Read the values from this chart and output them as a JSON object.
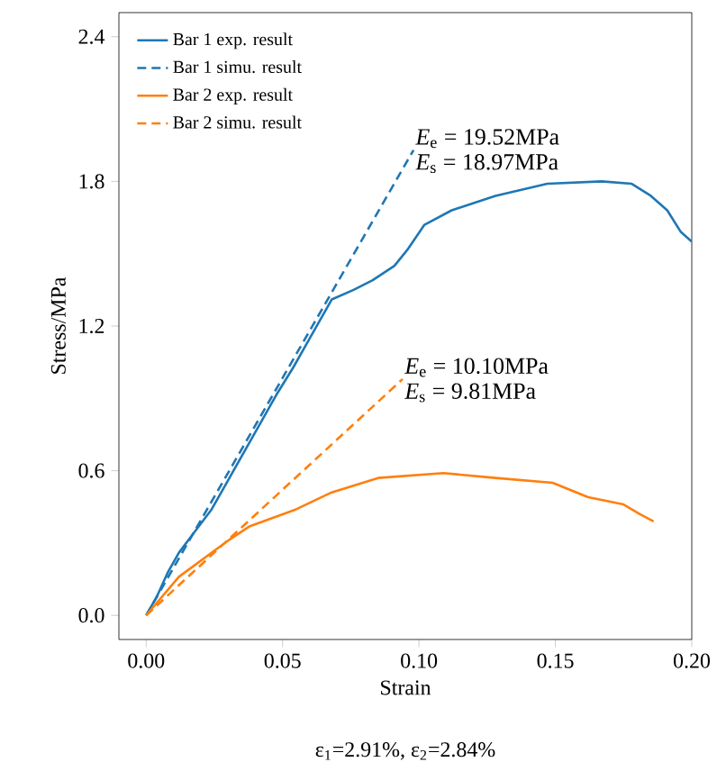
{
  "chart_data": {
    "type": "line",
    "xlabel": "Strain",
    "ylabel": "Stress/MPa",
    "xlim": [
      -0.01,
      0.2
    ],
    "ylim": [
      -0.1,
      2.5
    ],
    "xticks": [
      {
        "value": 0,
        "label": "0.00"
      },
      {
        "value": 0.05,
        "label": "0.05"
      },
      {
        "value": 0.1,
        "label": "0.10"
      },
      {
        "value": 0.15,
        "label": "0.15"
      },
      {
        "value": 0.2,
        "label": "0.20"
      }
    ],
    "yticks": [
      {
        "value": 0,
        "label": "0.0"
      },
      {
        "value": 0.6,
        "label": "0.6"
      },
      {
        "value": 1.2,
        "label": "1.2"
      },
      {
        "value": 1.8,
        "label": "1.8"
      },
      {
        "value": 2.4,
        "label": "2.4"
      }
    ],
    "legend": "top left",
    "grid": false,
    "series": [
      {
        "name": "Bar 1 exp. result",
        "color": "#1f77b4",
        "line_style": "solid",
        "x": [
          0,
          0.004,
          0.008,
          0.012,
          0.018,
          0.024,
          0.03,
          0.036,
          0.042,
          0.048,
          0.054,
          0.06,
          0.068,
          0.076,
          0.083,
          0.091,
          0.096,
          0.102,
          0.112,
          0.128,
          0.147,
          0.167,
          0.178,
          0.185,
          0.191,
          0.196,
          0.2
        ],
        "values": [
          0,
          0.08,
          0.18,
          0.26,
          0.35,
          0.44,
          0.56,
          0.68,
          0.8,
          0.92,
          1.03,
          1.15,
          1.31,
          1.35,
          1.39,
          1.45,
          1.52,
          1.62,
          1.68,
          1.74,
          1.79,
          1.8,
          1.79,
          1.74,
          1.68,
          1.59,
          1.55
        ]
      },
      {
        "name": "Bar 1 simu. result",
        "color": "#1f77b4",
        "line_style": "dashed",
        "x": [
          0,
          0.098
        ],
        "values": [
          0,
          1.93
        ]
      },
      {
        "name": "Bar 2 exp. result",
        "color": "#ff7f0e",
        "line_style": "solid",
        "x": [
          0,
          0.012,
          0.03,
          0.038,
          0.055,
          0.068,
          0.085,
          0.109,
          0.128,
          0.149,
          0.162,
          0.175,
          0.181,
          0.186
        ],
        "values": [
          0,
          0.16,
          0.31,
          0.37,
          0.44,
          0.51,
          0.57,
          0.59,
          0.57,
          0.55,
          0.49,
          0.46,
          0.42,
          0.39
        ]
      },
      {
        "name": "Bar 2 simu. result",
        "color": "#ff7f0e",
        "line_style": "dashed",
        "x": [
          0,
          0.094
        ],
        "values": [
          0,
          0.98
        ]
      }
    ],
    "annotations": [
      "*E*$_{e}$ = 19.52MPa",
      "*E*$_{s}$ = 18.97MPa",
      "*E*$_{e}$ = 10.10MPa",
      "*E*$_{s}$ = 9.81MPa",
      "ε$_{1}$=2.91%, ε$_{2}$=2.84%"
    ]
  }
}
